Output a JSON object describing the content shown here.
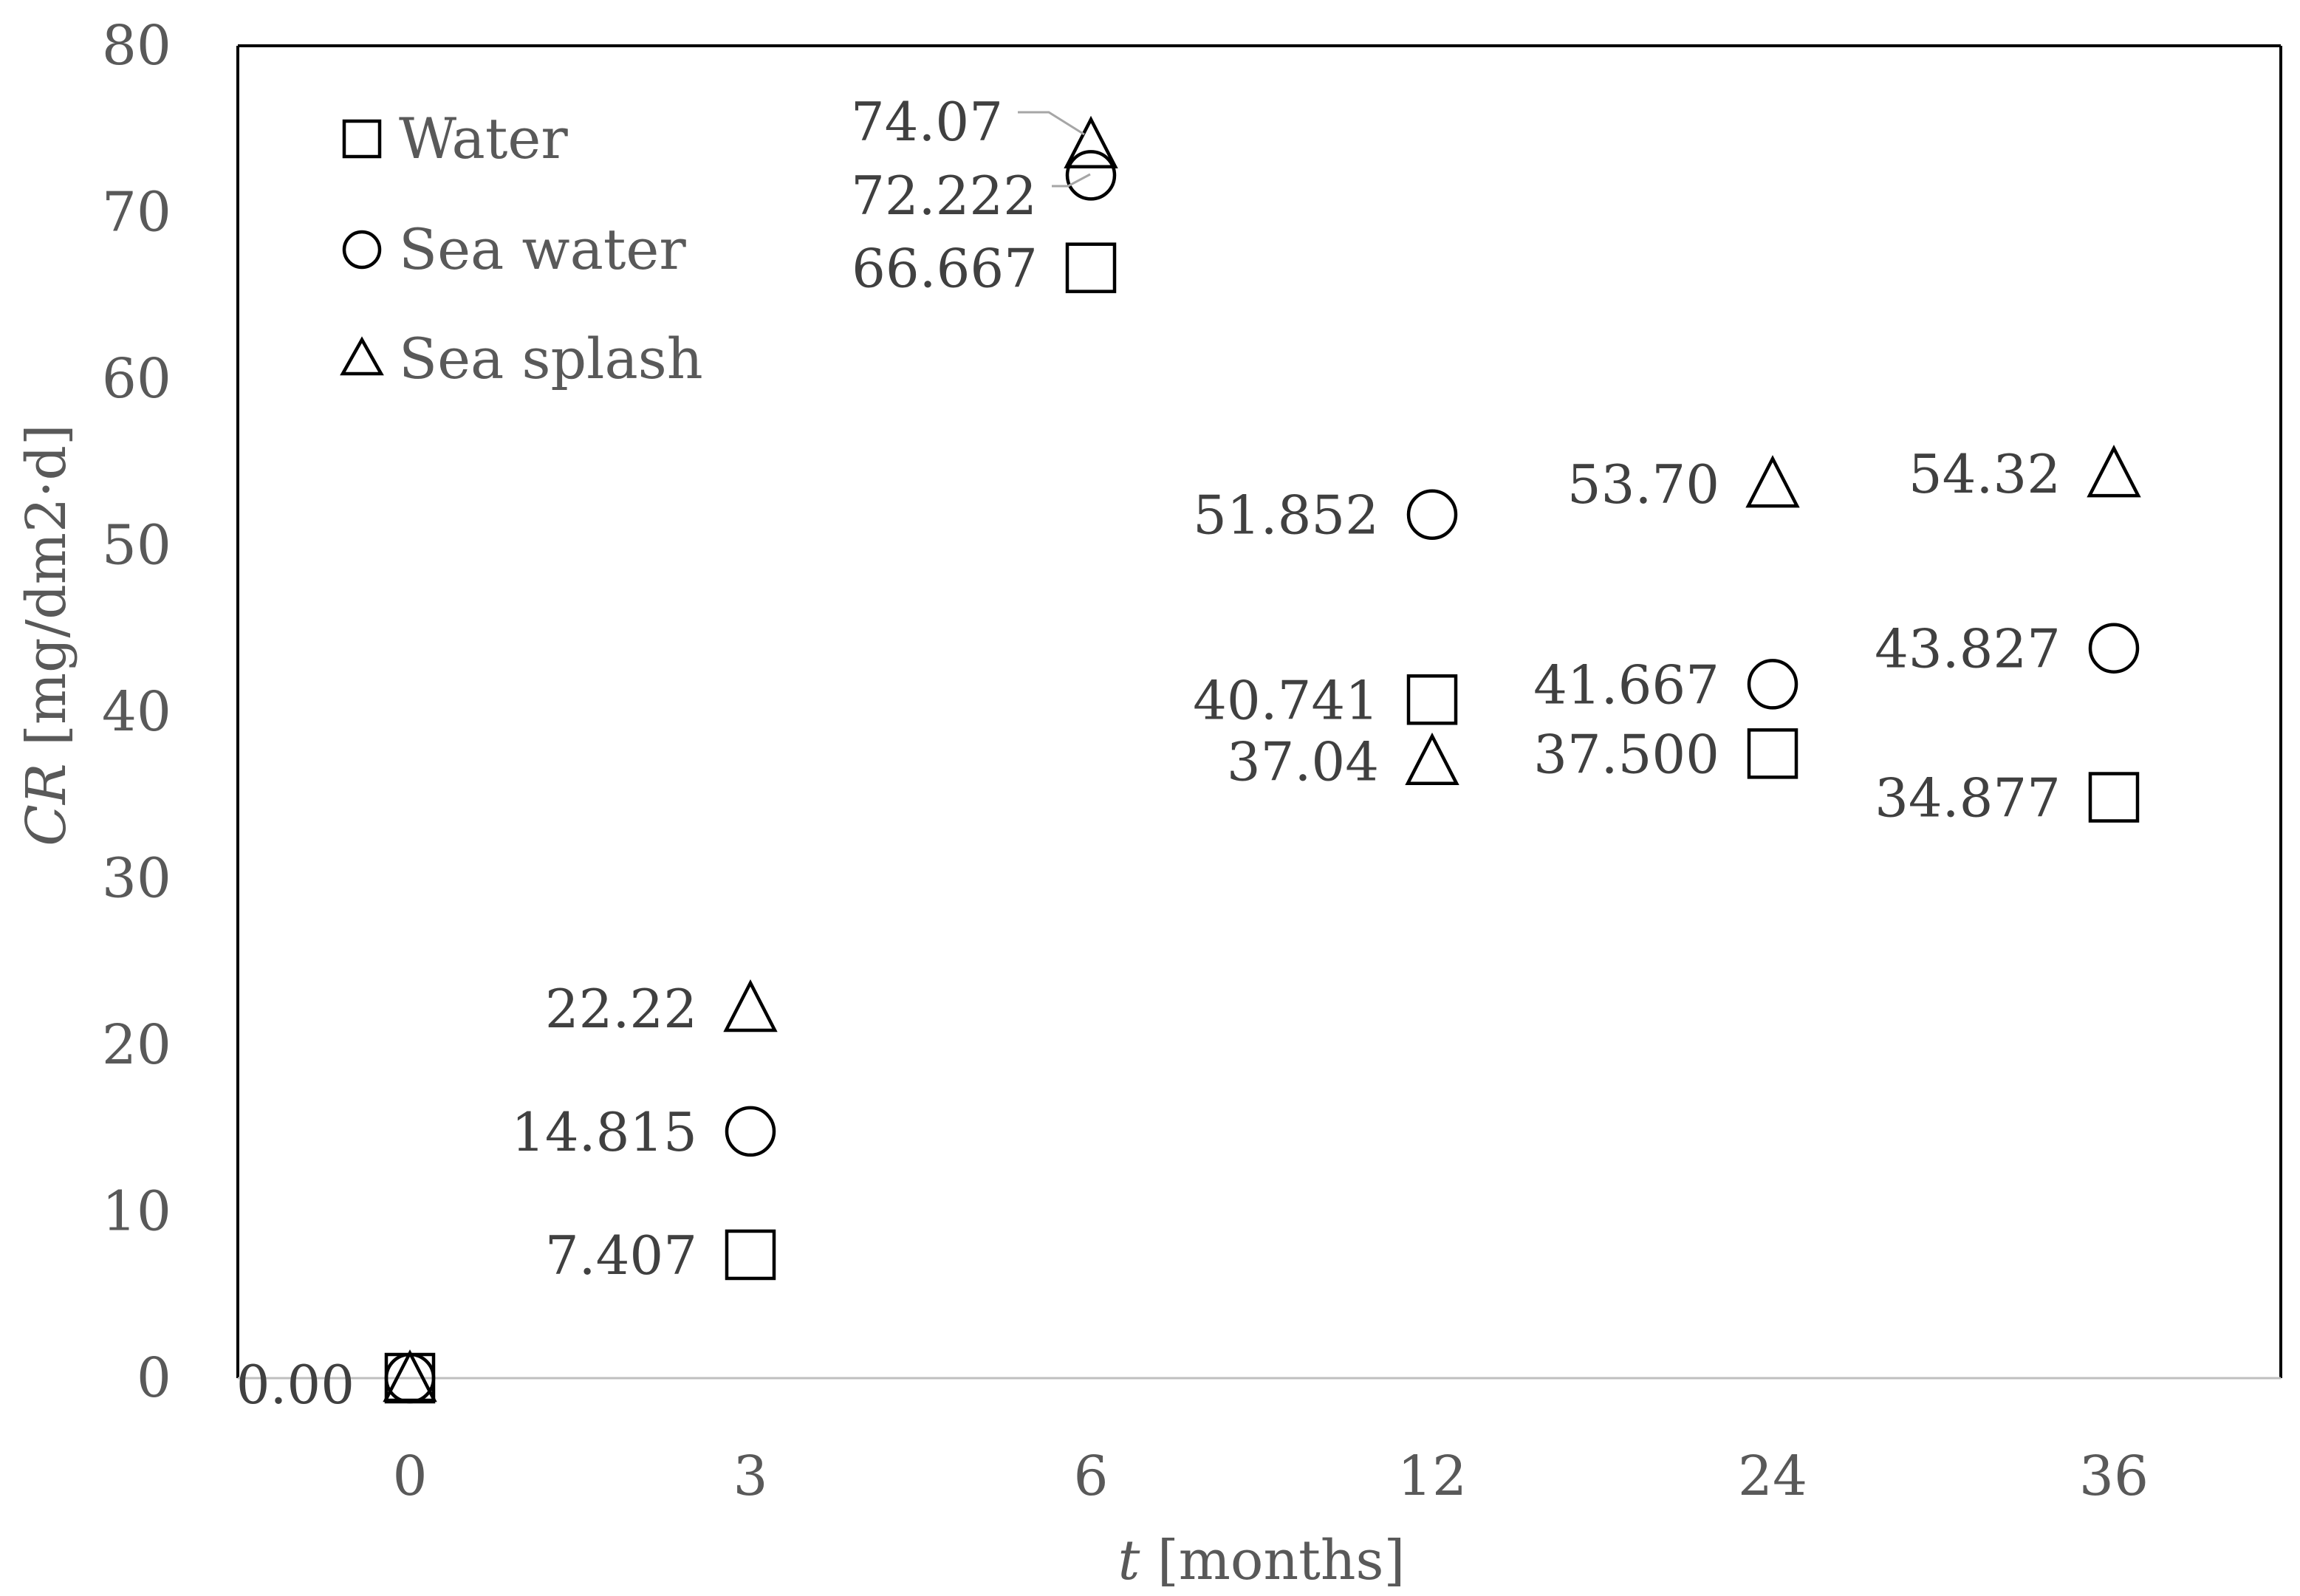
{
  "chart_data": {
    "type": "scatter",
    "categories": [
      "0",
      "3",
      "6",
      "12",
      "24",
      "36"
    ],
    "xlabel_italic": "t",
    "xlabel_rest": " [months]",
    "ylabel_italic": "CR",
    "ylabel_rest": " [mg/dm2·d]",
    "ylim": [
      0,
      80
    ],
    "yticks": [
      0,
      10,
      20,
      30,
      40,
      50,
      60,
      70,
      80
    ],
    "grid": false,
    "legend_position": "top-left",
    "series": [
      {
        "name": "Water",
        "marker": "square",
        "values": [
          0,
          7.407,
          66.667,
          40.741,
          37.5,
          34.877
        ],
        "labels": [
          "",
          "7.407",
          "66.667",
          "40.741",
          "37.500",
          "34.877"
        ]
      },
      {
        "name": "Sea water",
        "marker": "circle",
        "values": [
          0,
          14.815,
          72.222,
          51.852,
          41.667,
          43.827
        ],
        "labels": [
          "",
          "14.815",
          "72.222",
          "51.852",
          "41.667",
          "43.827"
        ]
      },
      {
        "name": "Sea splash",
        "marker": "triangle",
        "values": [
          0,
          22.22,
          74.07,
          37.04,
          53.7,
          54.32
        ],
        "labels": [
          "0.00",
          "22.22",
          "74.07",
          "37.04",
          "53.70",
          "54.32"
        ]
      }
    ]
  }
}
